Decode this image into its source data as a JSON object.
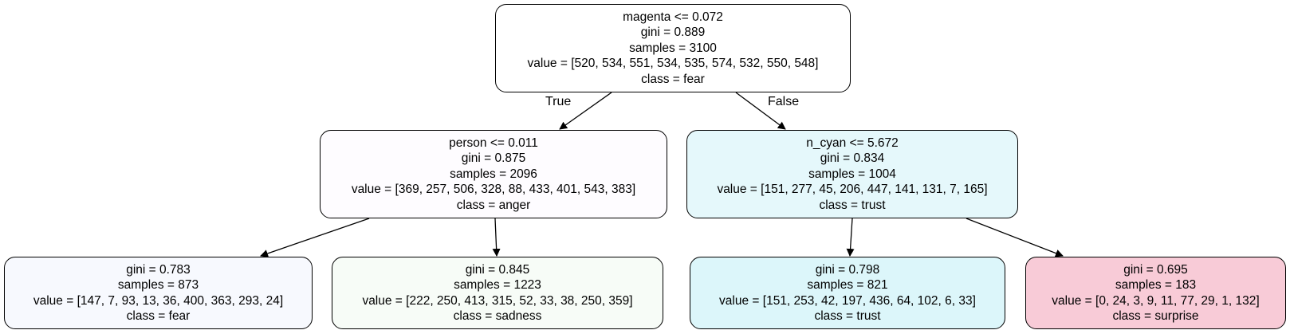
{
  "tree": {
    "nodes": [
      {
        "lines": [
          "magenta <= 0.072",
          "gini = 0.889",
          "samples = 3100",
          "value = [520, 534, 551, 534, 535, 574, 532, 550, 548]",
          "class = fear"
        ],
        "fill": "#ffffff"
      },
      {
        "lines": [
          "person <= 0.011",
          "gini = 0.875",
          "samples = 2096",
          "value = [369, 257, 506, 328, 88, 433, 401, 543, 383]",
          "class = anger"
        ],
        "fill": "#fefcff"
      },
      {
        "lines": [
          "n_cyan <= 5.672",
          "gini = 0.834",
          "samples = 1004",
          "value = [151, 277, 45, 206, 447, 141, 131, 7, 165]",
          "class = trust"
        ],
        "fill": "#e5f8fb"
      },
      {
        "lines": [
          "gini = 0.783",
          "samples = 873",
          "value = [147, 7, 93, 13, 36, 400, 363, 293, 24]",
          "class = fear"
        ],
        "fill": "#f7f9fe"
      },
      {
        "lines": [
          "gini = 0.845",
          "samples = 1223",
          "value = [222, 250, 413, 315, 52, 33, 38, 250, 359]",
          "class = sadness"
        ],
        "fill": "#f7fcf7"
      },
      {
        "lines": [
          "gini = 0.798",
          "samples = 821",
          "value = [151, 253, 42, 197, 436, 64, 102, 6, 33]",
          "class = trust"
        ],
        "fill": "#dcf6fa"
      },
      {
        "lines": [
          "gini = 0.695",
          "samples = 183",
          "value = [0, 24, 3, 9, 11, 77, 29, 1, 132]",
          "class = surprise"
        ],
        "fill": "#f8cbd7"
      }
    ],
    "edge_labels": {
      "true": "True",
      "false": "False"
    }
  }
}
